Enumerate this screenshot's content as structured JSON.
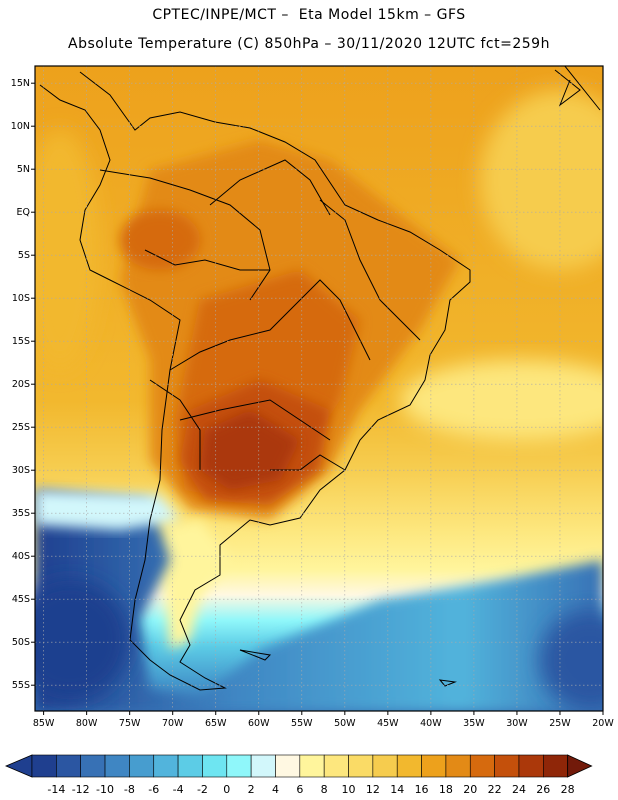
{
  "header": {
    "title_line1": "CPTEC/INPE/MCT –  Eta Model 15km – GFS",
    "title_line2": "Absolute Temperature (C) 850hPa – 30/11/2020 12UTC fct=259h"
  },
  "map": {
    "region": "South America",
    "variable": "Absolute Temperature (C) 850hPa",
    "lat_labels": [
      "15N",
      "10N",
      "5N",
      "EQ",
      "5S",
      "10S",
      "15S",
      "20S",
      "25S",
      "30S",
      "35S",
      "40S",
      "45S",
      "50S",
      "55S"
    ],
    "lon_labels": [
      "85W",
      "80W",
      "75W",
      "70W",
      "65W",
      "60W",
      "55W",
      "50W",
      "45W",
      "40W",
      "35W",
      "30W",
      "25W",
      "20W"
    ]
  },
  "colorbar": {
    "labels": [
      "-14",
      "-12",
      "-10",
      "-8",
      "-6",
      "-4",
      "-2",
      "0",
      "2",
      "4",
      "6",
      "8",
      "10",
      "12",
      "14",
      "16",
      "18",
      "20",
      "22",
      "24",
      "26",
      "28"
    ],
    "colors": [
      "#1f3f8f",
      "#2b56a2",
      "#3771b5",
      "#3f86c3",
      "#479dcf",
      "#52b4dc",
      "#5ccce6",
      "#6ee5f1",
      "#8ff7fa",
      "#d2f7fb",
      "#fff8e2",
      "#fff59c",
      "#fde77e",
      "#fadb66",
      "#f6cc4e",
      "#f2b82e",
      "#eda11c",
      "#e38a16",
      "#d66a0e",
      "#c4500b",
      "#ab380a",
      "#8f2608",
      "#721a0a"
    ]
  }
}
